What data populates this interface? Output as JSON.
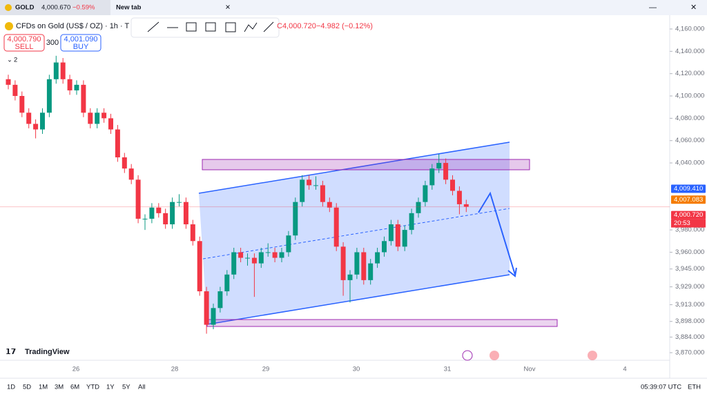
{
  "tab_bar": {
    "tab1": {
      "symbol": "GOLD",
      "price": "4,000.670",
      "change": "−0.59%"
    },
    "tab2": "New tab"
  },
  "legend": {
    "title": "CFDs on Gold (US$ / OZ) · 1h · T",
    "ohlc": "C4,000.720",
    "change": "−4.982 (−0.12%)",
    "sell_price": "4,000.790",
    "sell": "SELL",
    "spread": "300",
    "buy_price": "4,001.090",
    "buy": "BUY",
    "indicators": "2"
  },
  "logo": "TradingView",
  "bottom_bar": {
    "ranges": [
      "1D",
      "5D",
      "1M",
      "3M",
      "6M",
      "YTD",
      "1Y",
      "5Y",
      "All"
    ],
    "clock": "05:39:07 UTC",
    "session": "ETH"
  },
  "chart_data": {
    "type": "candlestick",
    "open": [
      4115,
      4110,
      4100,
      4085,
      4075,
      4070,
      4085,
      4115,
      4130,
      4115,
      4105,
      4110,
      4085,
      4075,
      4085,
      4080,
      4070,
      4045,
      4035,
      4025,
      3990,
      3990,
      4000,
      3995,
      3985,
      4005,
      4005,
      3985,
      3970,
      3925,
      3895,
      3910,
      3925,
      3940,
      3960,
      3955,
      3955,
      3950,
      3960,
      3960,
      3955,
      3960,
      3975,
      4005,
      4025,
      4020,
      4020,
      4005,
      4000,
      3965,
      3935,
      3940,
      3960,
      3935,
      3950,
      3960,
      3970,
      3985,
      3965,
      3980,
      3995,
      4005,
      4020,
      4035,
      4040,
      4025,
      4015,
      4003
    ],
    "high": [
      4119,
      4114,
      4104,
      4089,
      4079,
      4089,
      4119,
      4136,
      4134,
      4119,
      4114,
      4114,
      4089,
      4089,
      4089,
      4084,
      4074,
      4049,
      4039,
      4029,
      3994,
      4004,
      4004,
      3999,
      4009,
      4012,
      4009,
      3989,
      3974,
      3929,
      3914,
      3929,
      3944,
      3964,
      3964,
      3959,
      3959,
      3964,
      3968,
      3964,
      3964,
      3979,
      4009,
      4029,
      4029,
      4028,
      4024,
      4009,
      4004,
      3969,
      3944,
      3964,
      3964,
      3954,
      3964,
      3974,
      3989,
      3989,
      3984,
      3999,
      4009,
      4024,
      4039,
      4048,
      4044,
      4029,
      4019,
      4007
    ],
    "low": [
      4106,
      4096,
      4081,
      4071,
      4062,
      4066,
      4081,
      4111,
      4111,
      4101,
      4101,
      4081,
      4071,
      4071,
      4076,
      4066,
      4041,
      4031,
      4021,
      3986,
      3980,
      3986,
      3991,
      3981,
      3981,
      4001,
      3981,
      3966,
      3921,
      3887,
      3891,
      3906,
      3921,
      3936,
      3951,
      3948,
      3920,
      3946,
      3956,
      3951,
      3951,
      3956,
      3971,
      4001,
      4016,
      4016,
      4001,
      3996,
      3961,
      3921,
      3915,
      3936,
      3931,
      3931,
      3946,
      3956,
      3966,
      3961,
      3961,
      3976,
      3991,
      4001,
      4016,
      4031,
      4021,
      4011,
      3994,
      3996
    ],
    "close": [
      4110,
      4100,
      4085,
      4075,
      4070,
      4085,
      4115,
      4130,
      4115,
      4105,
      4110,
      4085,
      4075,
      4085,
      4080,
      4070,
      4045,
      4035,
      4025,
      3990,
      3990,
      4000,
      3995,
      3985,
      4005,
      4005,
      3985,
      3970,
      3925,
      3895,
      3910,
      3925,
      3940,
      3960,
      3955,
      3955,
      3950,
      3960,
      3960,
      3955,
      3960,
      3975,
      4005,
      4025,
      4020,
      4020,
      4005,
      4000,
      3965,
      3935,
      3940,
      3960,
      3935,
      3950,
      3960,
      3970,
      3985,
      3965,
      3980,
      3995,
      4005,
      4020,
      4035,
      4040,
      4025,
      4015,
      4003,
      4000.72
    ],
    "up_color": "#089981",
    "down_color": "#f23645",
    "ylim": [
      3870,
      4160
    ],
    "yticks": [
      {
        "value": 4160,
        "label": "4,160.000"
      },
      {
        "value": 4140,
        "label": "4,140.000"
      },
      {
        "value": 4120,
        "label": "4,120.000"
      },
      {
        "value": 4100,
        "label": "4,100.000"
      },
      {
        "value": 4080,
        "label": "4,080.000"
      },
      {
        "value": 4060,
        "label": "4,060.000"
      },
      {
        "value": 4040,
        "label": "4,040.000"
      },
      {
        "value": 3980,
        "label": "3,980.000"
      },
      {
        "value": 3960,
        "label": "3,960.000"
      },
      {
        "value": 3945,
        "label": "3,945.000"
      },
      {
        "value": 3929,
        "label": "3,929.000"
      },
      {
        "value": 3913,
        "label": "3,913.000"
      },
      {
        "value": 3898,
        "label": "3,898.000"
      },
      {
        "value": 3884,
        "label": "3,884.000"
      },
      {
        "value": 3870,
        "label": "3,870.000"
      }
    ],
    "xticks": [
      "26",
      "28",
      "29",
      "30",
      "31",
      "Nov",
      "4"
    ],
    "price_labels": [
      {
        "value": 4009.41,
        "label": "4,009.410",
        "color": "#2962ff"
      },
      {
        "value": 4007.083,
        "label": "4,007.083",
        "color": "#f57c00"
      },
      {
        "value": 4000.72,
        "label": "4,000.720",
        "color": "#f23645"
      }
    ],
    "countdown": "20:53"
  }
}
